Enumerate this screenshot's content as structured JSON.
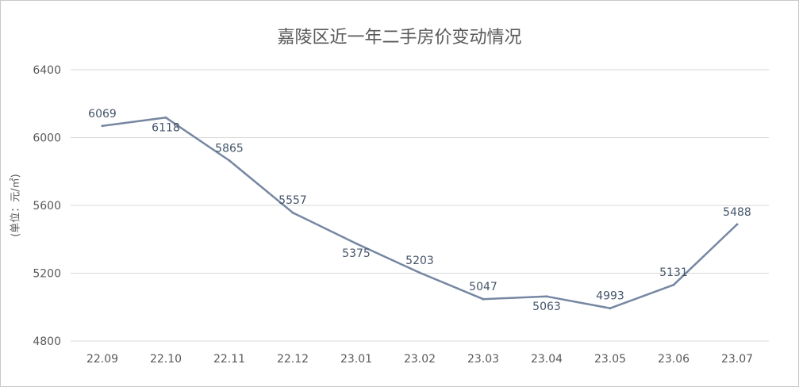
{
  "chart_data": {
    "type": "line",
    "title": "嘉陵区近一年二手房价变动情况",
    "xlabel": "",
    "ylabel": "(单位：元/㎡)",
    "categories": [
      "22.09",
      "22.10",
      "22.11",
      "22.12",
      "23.01",
      "23.02",
      "23.03",
      "23.04",
      "23.05",
      "23.06",
      "23.07"
    ],
    "series": [
      {
        "values": [
          6069,
          6118,
          5865,
          5557,
          5375,
          5203,
          5047,
          5063,
          4993,
          5131,
          5488
        ]
      }
    ],
    "ylim": [
      4800,
      6400
    ],
    "yticks": [
      4800,
      5200,
      5600,
      6000,
      6400
    ],
    "grid": true,
    "legend": "none",
    "line_color": "#7687a2"
  }
}
